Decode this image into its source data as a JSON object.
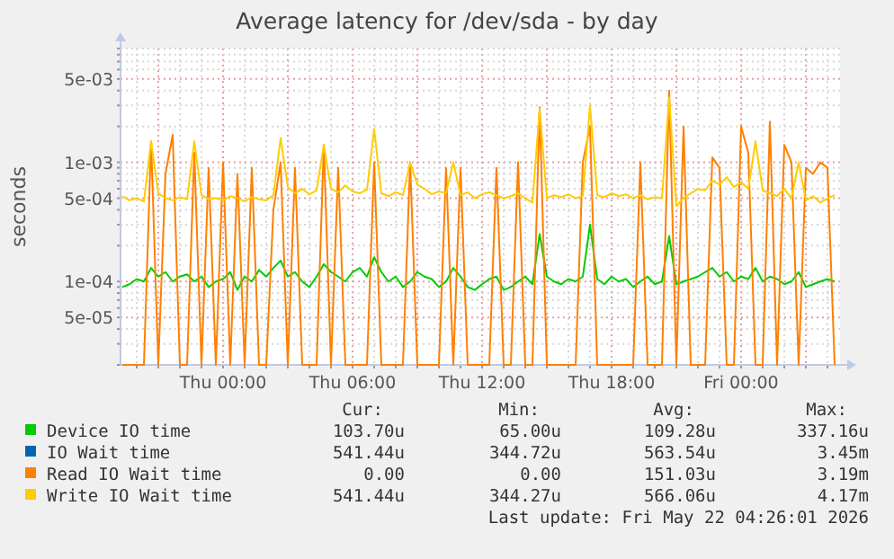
{
  "chart_data": {
    "type": "line",
    "title": "Average latency for /dev/sda - by day",
    "ylabel": "seconds",
    "log": "y",
    "grid": true,
    "legend": "bottom",
    "x": [
      "2026-05-20T19:20",
      "2026-05-20T19:40",
      "2026-05-20T20:00",
      "2026-05-20T20:20",
      "2026-05-20T20:40",
      "2026-05-20T21:00",
      "2026-05-20T21:20",
      "2026-05-20T21:40",
      "2026-05-20T22:00",
      "2026-05-20T22:20",
      "2026-05-20T22:40",
      "2026-05-20T23:00",
      "2026-05-20T23:20",
      "2026-05-20T23:40",
      "2026-05-21T00:00",
      "2026-05-21T00:20",
      "2026-05-21T00:40",
      "2026-05-21T01:00",
      "2026-05-21T01:20",
      "2026-05-21T01:40",
      "2026-05-21T02:00",
      "2026-05-21T02:20",
      "2026-05-21T02:40",
      "2026-05-21T03:00",
      "2026-05-21T03:20",
      "2026-05-21T03:40",
      "2026-05-21T04:00",
      "2026-05-21T04:20",
      "2026-05-21T04:40",
      "2026-05-21T05:00",
      "2026-05-21T05:20",
      "2026-05-21T05:40",
      "2026-05-21T06:00",
      "2026-05-21T06:20",
      "2026-05-21T06:40",
      "2026-05-21T07:00",
      "2026-05-21T07:20",
      "2026-05-21T07:40",
      "2026-05-21T08:00",
      "2026-05-21T08:20",
      "2026-05-21T08:40",
      "2026-05-21T09:00",
      "2026-05-21T09:20",
      "2026-05-21T09:40",
      "2026-05-21T10:00",
      "2026-05-21T10:20",
      "2026-05-21T10:40",
      "2026-05-21T11:00",
      "2026-05-21T11:20",
      "2026-05-21T11:40",
      "2026-05-21T12:00",
      "2026-05-21T12:20",
      "2026-05-21T12:40",
      "2026-05-21T13:00",
      "2026-05-21T13:20",
      "2026-05-21T13:40",
      "2026-05-21T14:00",
      "2026-05-21T14:20",
      "2026-05-21T14:40",
      "2026-05-21T15:00",
      "2026-05-21T15:20",
      "2026-05-21T15:40",
      "2026-05-21T16:00",
      "2026-05-21T16:20",
      "2026-05-21T16:40",
      "2026-05-21T17:00",
      "2026-05-21T17:20",
      "2026-05-21T17:40",
      "2026-05-21T18:00",
      "2026-05-21T18:20",
      "2026-05-21T18:40",
      "2026-05-21T19:00",
      "2026-05-21T19:20",
      "2026-05-21T19:40",
      "2026-05-21T20:00",
      "2026-05-21T20:20",
      "2026-05-21T20:40",
      "2026-05-21T21:00",
      "2026-05-21T21:20",
      "2026-05-21T21:40",
      "2026-05-21T22:00",
      "2026-05-21T22:20",
      "2026-05-21T22:40",
      "2026-05-21T23:00",
      "2026-05-21T23:20",
      "2026-05-21T23:40",
      "2026-05-22T00:00",
      "2026-05-22T00:20",
      "2026-05-22T00:40",
      "2026-05-22T01:00",
      "2026-05-22T01:20",
      "2026-05-22T01:40",
      "2026-05-22T02:00",
      "2026-05-22T02:20",
      "2026-05-22T02:40",
      "2026-05-22T03:00",
      "2026-05-22T03:20",
      "2026-05-22T03:40",
      "2026-05-22T04:00",
      "2026-05-22T04:20"
    ],
    "xlim": [
      "2026-05-20T19:15",
      "2026-05-22T04:35"
    ],
    "xticks": [
      {
        "value": "2026-05-20T20:00",
        "label": null
      },
      {
        "value": "2026-05-20T21:00",
        "label": null
      },
      {
        "value": "2026-05-20T22:00",
        "label": null
      },
      {
        "value": "2026-05-20T23:00",
        "label": null
      },
      {
        "value": "2026-05-21T00:00",
        "label": "Thu 00:00"
      },
      {
        "value": "2026-05-21T01:00",
        "label": null
      },
      {
        "value": "2026-05-21T02:00",
        "label": null
      },
      {
        "value": "2026-05-21T03:00",
        "label": null
      },
      {
        "value": "2026-05-21T04:00",
        "label": null
      },
      {
        "value": "2026-05-21T05:00",
        "label": null
      },
      {
        "value": "2026-05-21T06:00",
        "label": "Thu 06:00"
      },
      {
        "value": "2026-05-21T07:00",
        "label": null
      },
      {
        "value": "2026-05-21T08:00",
        "label": null
      },
      {
        "value": "2026-05-21T09:00",
        "label": null
      },
      {
        "value": "2026-05-21T10:00",
        "label": null
      },
      {
        "value": "2026-05-21T11:00",
        "label": null
      },
      {
        "value": "2026-05-21T12:00",
        "label": "Thu 12:00"
      },
      {
        "value": "2026-05-21T13:00",
        "label": null
      },
      {
        "value": "2026-05-21T14:00",
        "label": null
      },
      {
        "value": "2026-05-21T15:00",
        "label": null
      },
      {
        "value": "2026-05-21T16:00",
        "label": null
      },
      {
        "value": "2026-05-21T17:00",
        "label": null
      },
      {
        "value": "2026-05-21T18:00",
        "label": "Thu 18:00"
      },
      {
        "value": "2026-05-21T19:00",
        "label": null
      },
      {
        "value": "2026-05-21T20:00",
        "label": null
      },
      {
        "value": "2026-05-21T21:00",
        "label": null
      },
      {
        "value": "2026-05-21T22:00",
        "label": null
      },
      {
        "value": "2026-05-21T23:00",
        "label": null
      },
      {
        "value": "2026-05-22T00:00",
        "label": "Fri 00:00"
      },
      {
        "value": "2026-05-22T01:00",
        "label": null
      },
      {
        "value": "2026-05-22T02:00",
        "label": null
      },
      {
        "value": "2026-05-22T03:00",
        "label": null
      },
      {
        "value": "2026-05-22T04:00",
        "label": null
      }
    ],
    "ylim": [
      2e-05,
      0.009
    ],
    "yticks": [
      {
        "value": 2e-05,
        "label": null
      },
      {
        "value": 3e-05,
        "label": null
      },
      {
        "value": 4e-05,
        "label": null
      },
      {
        "value": 5e-05,
        "label": "5e-05"
      },
      {
        "value": 6e-05,
        "label": null
      },
      {
        "value": 7e-05,
        "label": null
      },
      {
        "value": 8e-05,
        "label": null
      },
      {
        "value": 9e-05,
        "label": null
      },
      {
        "value": 0.0001,
        "label": "1e-04"
      },
      {
        "value": 0.0002,
        "label": null
      },
      {
        "value": 0.0003,
        "label": null
      },
      {
        "value": 0.0004,
        "label": null
      },
      {
        "value": 0.0005,
        "label": "5e-04"
      },
      {
        "value": 0.0006,
        "label": null
      },
      {
        "value": 0.0007,
        "label": null
      },
      {
        "value": 0.0008,
        "label": null
      },
      {
        "value": 0.0009,
        "label": null
      },
      {
        "value": 0.001,
        "label": "1e-03"
      },
      {
        "value": 0.002,
        "label": null
      },
      {
        "value": 0.003,
        "label": null
      },
      {
        "value": 0.004,
        "label": null
      },
      {
        "value": 0.005,
        "label": "5e-03"
      },
      {
        "value": 0.006,
        "label": null
      },
      {
        "value": 0.007,
        "label": null
      },
      {
        "value": 0.008,
        "label": null
      },
      {
        "value": 0.009,
        "label": null
      }
    ],
    "series": [
      {
        "name": "Device IO time",
        "color": "#00cc00",
        "values": [
          9e-05,
          9.5e-05,
          0.000105,
          0.0001,
          0.00013,
          0.00011,
          0.00012,
          0.0001,
          0.00011,
          0.000115,
          0.0001,
          0.00011,
          9e-05,
          0.0001,
          0.000105,
          0.00012,
          8.5e-05,
          0.00011,
          0.0001,
          0.000125,
          0.00011,
          0.00013,
          0.00015,
          0.00011,
          0.00012,
          0.0001,
          9e-05,
          0.00011,
          0.00014,
          0.00012,
          0.00011,
          0.0001,
          0.00012,
          0.00013,
          0.00011,
          0.00016,
          0.00012,
          0.0001,
          0.00011,
          9e-05,
          0.0001,
          0.00012,
          0.00011,
          0.000105,
          9e-05,
          0.0001,
          0.00013,
          0.00011,
          9e-05,
          8.5e-05,
          9.5e-05,
          0.000105,
          0.00011,
          8.5e-05,
          9e-05,
          0.0001,
          0.00011,
          9.5e-05,
          0.00025,
          0.00011,
          0.0001,
          9.5e-05,
          0.000105,
          0.0001,
          0.00011,
          0.0003,
          0.000105,
          9.5e-05,
          0.00011,
          0.0001,
          0.000105,
          9e-05,
          0.0001,
          0.00011,
          9.5e-05,
          0.0001,
          0.00024,
          9.5e-05,
          0.0001,
          0.000105,
          0.00011,
          0.00012,
          0.00013,
          0.00011,
          0.00012,
          0.0001,
          0.00011,
          0.000105,
          0.00013,
          0.0001,
          0.00011,
          0.000105,
          9.5e-05,
          0.0001,
          0.00012,
          9e-05,
          9.5e-05,
          0.0001,
          0.000105,
          0.0001
        ]
      },
      {
        "name": "IO Wait time",
        "color": "#0066b3",
        "values": [
          null,
          null,
          null,
          null,
          null,
          null,
          null,
          null,
          null,
          null,
          null,
          null,
          null,
          null,
          null,
          null,
          null,
          null,
          null,
          null,
          null,
          null,
          null,
          null,
          null,
          null,
          null,
          null,
          null,
          null,
          null,
          null,
          null,
          null,
          null,
          null,
          null,
          null,
          null,
          null,
          null,
          null,
          null,
          null,
          null,
          null,
          null,
          null,
          null,
          null,
          null,
          null,
          null,
          null,
          null,
          null,
          null,
          null,
          null,
          null,
          null,
          null,
          null,
          null,
          null,
          null,
          null,
          null,
          null,
          null,
          null,
          null,
          null,
          null,
          null,
          null,
          null,
          null,
          null,
          null,
          null,
          null,
          null,
          null,
          null,
          null,
          null,
          null,
          null,
          null,
          null,
          null,
          null,
          null,
          null,
          null,
          null,
          null,
          null,
          null
        ]
      },
      {
        "name": "Read IO Wait time",
        "color": "#ff8000",
        "values": [
          2e-05,
          2e-05,
          2e-05,
          2e-05,
          0.0015,
          2e-05,
          0.0008,
          0.0017,
          2e-05,
          2e-05,
          0.0012,
          2e-05,
          0.0009,
          2e-05,
          0.001,
          2e-05,
          0.0008,
          2e-05,
          0.0009,
          2e-05,
          2e-05,
          0.0004,
          0.001,
          2e-05,
          0.0009,
          2e-05,
          2e-05,
          2e-05,
          0.0014,
          2e-05,
          0.0009,
          2e-05,
          2e-05,
          2e-05,
          2e-05,
          0.001,
          2e-05,
          2e-05,
          2e-05,
          2e-05,
          0.001,
          2e-05,
          2e-05,
          2e-05,
          2e-05,
          0.0009,
          2e-05,
          0.0009,
          2e-05,
          2e-05,
          2e-05,
          2e-05,
          0.0009,
          2e-05,
          2e-05,
          0.001,
          2e-05,
          2e-05,
          0.0029,
          2e-05,
          2e-05,
          2e-05,
          2e-05,
          2e-05,
          0.001,
          0.002,
          2e-05,
          2e-05,
          2e-05,
          2e-05,
          2e-05,
          2e-05,
          0.001,
          2e-05,
          2e-05,
          2e-05,
          0.004,
          2e-05,
          0.002,
          2e-05,
          2e-05,
          2e-05,
          0.0011,
          0.0009,
          2e-05,
          2e-05,
          0.002,
          0.0012,
          2e-05,
          2e-05,
          0.0022,
          2e-05,
          0.0014,
          0.001,
          2e-05,
          0.0009,
          0.0008,
          0.001,
          0.0009,
          2e-05
        ]
      },
      {
        "name": "Write IO Wait time",
        "color": "#ffcc00",
        "values": [
          0.00052,
          0.00048,
          0.0005,
          0.00047,
          0.0015,
          0.00055,
          0.0005,
          0.00048,
          0.00051,
          0.00049,
          0.0015,
          0.00053,
          0.00049,
          0.0005,
          0.00048,
          0.00052,
          0.0005,
          0.00047,
          0.00051,
          0.00049,
          0.00048,
          0.00053,
          0.0016,
          0.00062,
          0.00055,
          0.0006,
          0.00054,
          0.00058,
          0.0014,
          0.0006,
          0.00056,
          0.00064,
          0.00057,
          0.00055,
          0.00059,
          0.0019,
          0.00055,
          0.00052,
          0.00056,
          0.00053,
          0.001,
          0.00065,
          0.0006,
          0.00054,
          0.00057,
          0.00055,
          0.001,
          0.00053,
          0.00056,
          0.0005,
          0.00054,
          0.00056,
          0.00053,
          0.0005,
          0.00052,
          0.00055,
          0.0005,
          0.00046,
          0.0028,
          0.0005,
          0.00053,
          0.00051,
          0.00054,
          0.0005,
          0.00052,
          0.003,
          0.00053,
          0.00051,
          0.00055,
          0.00052,
          0.00054,
          0.0005,
          0.00053,
          0.00049,
          0.00051,
          0.0005,
          0.0035,
          0.00043,
          0.0005,
          0.00055,
          0.0006,
          0.00058,
          0.0007,
          0.00065,
          0.00075,
          0.00062,
          0.00068,
          0.0006,
          0.0015,
          0.00058,
          0.00055,
          0.00052,
          0.0006,
          0.0005,
          0.001,
          0.00048,
          0.00052,
          0.00046,
          0.0005,
          0.00053
        ]
      }
    ],
    "annotations": [
      "Cur:",
      "Min:",
      "Avg:",
      "Max:",
      "103.70u",
      "65.00u",
      "109.28u",
      "337.16u",
      "541.44u",
      "344.72u",
      "563.54u",
      "3.45m",
      "0.00",
      "0.00",
      "151.03u",
      "3.19m",
      "541.44u",
      "344.27u",
      "566.06u",
      "4.17m",
      "Last update: Fri May 22 04:26:01 2026"
    ]
  }
}
